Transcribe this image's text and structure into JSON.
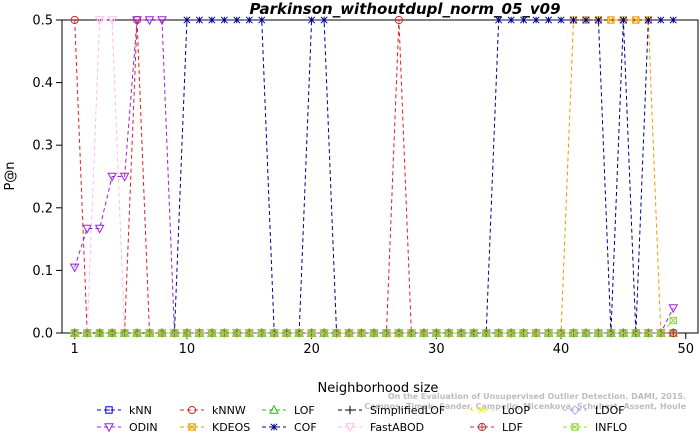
{
  "chart_data": {
    "type": "line",
    "title": "Parkinson_withoutdupl_norm_05_v09",
    "xlabel": "Neighborhood size",
    "ylabel": "P@n",
    "xlim": [
      0,
      50
    ],
    "ylim": [
      0,
      0.5
    ],
    "xticks": [
      1,
      10,
      20,
      30,
      40,
      50
    ],
    "yticks": [
      0.0,
      0.1,
      0.2,
      0.3,
      0.4,
      0.5
    ],
    "x": [
      1,
      2,
      3,
      4,
      5,
      6,
      7,
      8,
      9,
      10,
      11,
      12,
      13,
      14,
      15,
      16,
      17,
      18,
      19,
      20,
      21,
      22,
      23,
      24,
      25,
      26,
      27,
      28,
      29,
      30,
      31,
      32,
      33,
      34,
      35,
      36,
      37,
      38,
      39,
      40,
      41,
      42,
      43,
      44,
      45,
      46,
      47,
      48,
      49
    ],
    "series": [
      {
        "name": "kNN",
        "color": "#0000cc",
        "marker": "square-dot",
        "values": [
          0,
          0,
          0,
          0,
          0,
          0,
          0,
          0,
          0,
          0,
          0,
          0,
          0,
          0,
          0,
          0,
          0,
          0,
          0,
          0,
          0,
          0,
          0,
          0,
          0,
          0,
          0,
          0,
          0,
          0,
          0,
          0,
          0,
          0,
          0,
          0,
          0,
          0,
          0,
          0,
          0,
          0,
          0,
          0,
          0,
          0,
          0,
          0,
          0
        ]
      },
      {
        "name": "kNNW",
        "color": "#dd2222",
        "marker": "circle",
        "values": [
          0.5,
          0,
          0,
          0,
          0,
          0.5,
          0,
          0,
          0,
          0,
          0,
          0,
          0,
          0,
          0,
          0,
          0,
          0,
          0,
          0,
          0,
          0,
          0,
          0,
          0,
          0,
          0.5,
          0,
          0,
          0,
          0,
          0,
          0,
          0,
          0,
          0,
          0,
          0,
          0,
          0,
          0,
          0,
          0,
          0,
          0,
          0,
          0,
          0,
          0
        ]
      },
      {
        "name": "LOF",
        "color": "#22bb22",
        "marker": "triangle-up",
        "values": [
          0,
          0,
          0,
          0,
          0,
          0,
          0,
          0,
          0,
          0,
          0,
          0,
          0,
          0,
          0,
          0,
          0,
          0,
          0,
          0,
          0,
          0,
          0,
          0,
          0,
          0,
          0,
          0,
          0,
          0,
          0,
          0,
          0,
          0,
          0,
          0,
          0,
          0,
          0,
          0,
          0,
          0,
          0,
          0,
          0,
          0,
          0,
          0,
          0
        ]
      },
      {
        "name": "SimplifiedLOF",
        "color": "#000000",
        "marker": "plus",
        "values": [
          0,
          0,
          0,
          0,
          0,
          0,
          0,
          0,
          0,
          0,
          0,
          0,
          0,
          0,
          0,
          0,
          0,
          0,
          0,
          0,
          0,
          0,
          0,
          0,
          0,
          0,
          0,
          0,
          0,
          0,
          0,
          0,
          0,
          0,
          0,
          0,
          0,
          0,
          0,
          0,
          0,
          0,
          0,
          0,
          0,
          0,
          0,
          0,
          0
        ]
      },
      {
        "name": "LoOP",
        "color": "#eeee00",
        "marker": "x",
        "values": [
          0,
          0,
          0,
          0,
          0,
          0,
          0,
          0,
          0,
          0,
          0,
          0,
          0,
          0,
          0,
          0,
          0,
          0,
          0,
          0,
          0,
          0,
          0,
          0,
          0,
          0,
          0,
          0,
          0,
          0,
          0,
          0,
          0,
          0,
          0,
          0,
          0,
          0,
          0,
          0,
          0,
          0,
          0,
          0,
          0,
          0,
          0,
          0,
          0
        ]
      },
      {
        "name": "LDOF",
        "color": "#aaaaee",
        "marker": "diamond",
        "values": [
          0,
          0,
          0,
          0,
          0,
          0,
          0,
          0,
          0,
          0,
          0,
          0,
          0,
          0,
          0,
          0,
          0,
          0,
          0,
          0,
          0,
          0,
          0,
          0,
          0,
          0,
          0,
          0,
          0,
          0,
          0,
          0,
          0,
          0,
          0,
          0,
          0,
          0,
          0,
          0,
          0,
          0,
          0,
          0,
          0,
          0,
          0,
          0,
          0
        ]
      },
      {
        "name": "ODIN",
        "color": "#9922dd",
        "marker": "triangle-down",
        "values": [
          0.105,
          0.167,
          0.167,
          0.25,
          0.25,
          0.5,
          0.5,
          0.5,
          0,
          0,
          0,
          0,
          0,
          0,
          0,
          0,
          0,
          0,
          0,
          0,
          0,
          0,
          0,
          0,
          0,
          0,
          0,
          0,
          0,
          0,
          0,
          0,
          0,
          0,
          0,
          0,
          0,
          0,
          0,
          0,
          0,
          0,
          0,
          0,
          0,
          0,
          0,
          0,
          0.04
        ]
      },
      {
        "name": "KDEOS",
        "color": "#ee9900",
        "marker": "square-x",
        "values": [
          0,
          0,
          0,
          0,
          0,
          0,
          0,
          0,
          0,
          0,
          0,
          0,
          0,
          0,
          0,
          0,
          0,
          0,
          0,
          0,
          0,
          0,
          0,
          0,
          0,
          0,
          0,
          0,
          0,
          0,
          0,
          0,
          0,
          0,
          0,
          0,
          0,
          0,
          0,
          0,
          0.5,
          0.5,
          0.5,
          0.5,
          0.5,
          0.5,
          0.5,
          0,
          0
        ]
      },
      {
        "name": "COF",
        "color": "#000088",
        "marker": "star",
        "values": [
          0,
          0,
          0,
          0,
          0,
          0,
          0,
          0,
          0,
          0.5,
          0.5,
          0.5,
          0.5,
          0.5,
          0.5,
          0.5,
          0,
          0,
          0,
          0.5,
          0.5,
          0,
          0,
          0,
          0,
          0,
          0,
          0,
          0,
          0,
          0,
          0,
          0,
          0,
          0.5,
          0.5,
          0.5,
          0.5,
          0.5,
          0.5,
          0.5,
          0.5,
          0.5,
          0,
          0.5,
          0,
          0.5,
          0.5,
          0.5
        ]
      },
      {
        "name": "FastABOD",
        "color": "#ffbbee",
        "marker": "triangle-down",
        "values": [
          0,
          0,
          0.5,
          0.5,
          0,
          0,
          0,
          0,
          0,
          0,
          0,
          0,
          0,
          0,
          0,
          0,
          0,
          0,
          0,
          0,
          0,
          0,
          0,
          0,
          0,
          0,
          0,
          0,
          0,
          0,
          0,
          0,
          0,
          0,
          0,
          0,
          0,
          0,
          0,
          0,
          0,
          0,
          0,
          0,
          0,
          0,
          0,
          0,
          0
        ]
      },
      {
        "name": "LDF",
        "color": "#bb3333",
        "marker": "circle-plus",
        "values": [
          0,
          0,
          0,
          0,
          0,
          0,
          0,
          0,
          0,
          0,
          0,
          0,
          0,
          0,
          0,
          0,
          0,
          0,
          0,
          0,
          0,
          0,
          0,
          0,
          0,
          0,
          0,
          0,
          0,
          0,
          0,
          0,
          0,
          0,
          0,
          0,
          0,
          0,
          0,
          0,
          0,
          0,
          0,
          0,
          0,
          0,
          0,
          0,
          0
        ]
      },
      {
        "name": "INFLO",
        "color": "#88dd33",
        "marker": "square-x",
        "values": [
          0,
          0,
          0,
          0,
          0,
          0,
          0,
          0,
          0,
          0,
          0,
          0,
          0,
          0,
          0,
          0,
          0,
          0,
          0,
          0,
          0,
          0,
          0,
          0,
          0,
          0,
          0,
          0,
          0,
          0,
          0,
          0,
          0,
          0,
          0,
          0,
          0,
          0,
          0,
          0,
          0,
          0,
          0,
          0,
          0,
          0,
          0,
          0,
          0.02
        ]
      }
    ],
    "legend_placement": "bottom",
    "grid": false
  },
  "watermark": {
    "line1": "Campos, Zimek, Sander, Campello, Micenkova, Schubert, Assent, Houle",
    "line2": "On the Evaluation of Unsupervised Outlier Detection. DAMI, 2015."
  }
}
